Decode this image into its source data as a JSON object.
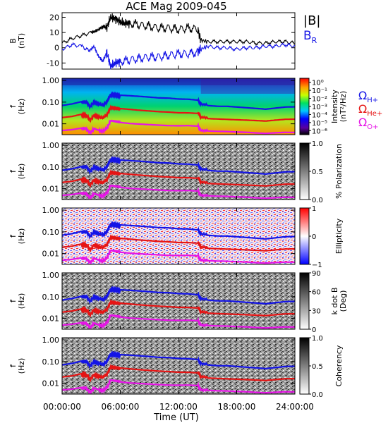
{
  "title": "ACE Mag 2009-045",
  "xlabel": "Time (UT)",
  "xticks": [
    "00:00:00",
    "06:00:00",
    "12:00:00",
    "18:00:00",
    "24:00:00"
  ],
  "freq_ticks": [
    "1.00",
    "0.10",
    "0.01"
  ],
  "freq_ylabel": [
    "f",
    "(Hz)"
  ],
  "legend": {
    "B_total": "|B|",
    "B_R": "B",
    "B_R_sub": "R",
    "omega": "Ω",
    "gyro": [
      {
        "sub": "H+",
        "color": "#1414e6"
      },
      {
        "sub": "He+",
        "color": "#e61414"
      },
      {
        "sub": "O+",
        "color": "#e614e6"
      }
    ]
  },
  "colors": {
    "B_total": "#000000",
    "B_R": "#1414e6",
    "H": "#1414e6",
    "He": "#e61414",
    "O": "#e614e6"
  },
  "chart_data": [
    {
      "type": "line",
      "panel": "B",
      "ylabel": [
        "B",
        "(nT)"
      ],
      "yticks": [
        "20",
        "10",
        "0",
        "-10"
      ],
      "ylim": [
        -14,
        23
      ],
      "x_unit": "hours UT",
      "xlim": [
        0,
        24
      ],
      "series": [
        {
          "name": "|B|",
          "x": [
            0,
            1,
            2,
            3,
            3.5,
            4,
            4.3,
            4.6,
            5,
            5.5,
            6,
            6.5,
            7,
            8,
            9,
            10,
            11,
            12,
            13,
            14,
            14.3,
            15,
            16,
            17,
            18,
            19,
            20,
            21,
            22,
            23,
            24
          ],
          "y": [
            3,
            6,
            8,
            10,
            11,
            13,
            14,
            13,
            20,
            19,
            17,
            16,
            16,
            15,
            14,
            13,
            13,
            12,
            13,
            12,
            5,
            4,
            4,
            4,
            4,
            4,
            3,
            3,
            4,
            4,
            3
          ]
        },
        {
          "name": "B_R",
          "x": [
            0,
            1,
            2,
            2.8,
            3.3,
            3.7,
            4.2,
            4.6,
            5,
            5.5,
            6,
            7,
            8,
            9,
            10,
            11,
            12,
            13,
            14,
            14.3,
            15,
            16,
            17,
            18,
            19,
            20,
            21,
            22,
            23,
            24
          ],
          "y": [
            -1,
            2,
            1,
            -2,
            1,
            -5,
            -9,
            -3,
            -12,
            -10,
            -9,
            -8,
            -7,
            -6,
            -6,
            -5,
            -4,
            -4,
            -3,
            -1,
            1,
            0,
            0,
            -1,
            0,
            0,
            1,
            1,
            2,
            1
          ]
        }
      ]
    },
    {
      "type": "heatmap",
      "panel": "Intensity",
      "colorbar_label": [
        "Intensity",
        "(nT²/Hz)"
      ],
      "colorbar_ticks": [
        "10⁰",
        "10⁻¹",
        "10⁻²",
        "10⁻³",
        "10⁻⁴",
        "10⁻⁵",
        "10⁻⁶"
      ],
      "colorbar_range": [
        -6.5,
        0.5
      ]
    },
    {
      "type": "heatmap",
      "panel": "Polarization",
      "colorbar_label": [
        "% Polarization"
      ],
      "colorbar_ticks": [
        "1.0",
        "0.5",
        "0.0"
      ],
      "colorbar_range": [
        0,
        1
      ]
    },
    {
      "type": "heatmap",
      "panel": "Ellipticity",
      "colorbar_label": [
        "Ellipticity"
      ],
      "colorbar_ticks": [
        "1",
        "0",
        "−1"
      ],
      "colorbar_range": [
        -1,
        1
      ]
    },
    {
      "type": "heatmap",
      "panel": "k dot B",
      "colorbar_label": [
        "k dot B",
        "(Deg)"
      ],
      "colorbar_ticks": [
        "90",
        "60",
        "30",
        "0"
      ],
      "colorbar_range": [
        0,
        90
      ]
    },
    {
      "type": "heatmap",
      "panel": "Coherency",
      "colorbar_label": [
        "Coherency"
      ],
      "colorbar_ticks": [
        "1.0",
        "0.5",
        "0.0"
      ],
      "colorbar_range": [
        0,
        1
      ]
    }
  ],
  "gyrofrequency_lines": {
    "x": [
      0,
      1,
      2,
      2.5,
      2.9,
      3.3,
      3.8,
      4.2,
      4.6,
      5,
      5.5,
      6,
      7,
      8,
      9,
      10,
      11,
      12,
      13,
      14,
      14.3,
      15,
      16,
      17,
      18,
      19,
      20,
      21,
      22,
      23,
      24
    ],
    "H+": [
      0.07,
      0.08,
      0.1,
      0.1,
      0.06,
      0.1,
      0.08,
      0.07,
      0.1,
      0.22,
      0.21,
      0.19,
      0.18,
      0.17,
      0.16,
      0.15,
      0.15,
      0.14,
      0.14,
      0.13,
      0.08,
      0.075,
      0.07,
      0.07,
      0.065,
      0.06,
      0.055,
      0.05,
      0.055,
      0.06,
      0.06
    ],
    "He+": [
      0.018,
      0.02,
      0.025,
      0.025,
      0.015,
      0.025,
      0.02,
      0.018,
      0.025,
      0.055,
      0.052,
      0.048,
      0.045,
      0.042,
      0.04,
      0.038,
      0.037,
      0.035,
      0.035,
      0.033,
      0.02,
      0.019,
      0.018,
      0.017,
      0.016,
      0.015,
      0.014,
      0.013,
      0.014,
      0.015,
      0.015
    ],
    "O+": [
      0.0045,
      0.005,
      0.006,
      0.006,
      0.004,
      0.006,
      0.005,
      0.0045,
      0.006,
      0.014,
      0.013,
      0.012,
      0.011,
      0.0105,
      0.01,
      0.0095,
      0.009,
      0.0088,
      0.0088,
      0.0082,
      0.005,
      0.0048,
      0.0045,
      0.0043,
      0.004,
      0.0038,
      0.0035,
      0.0033,
      0.0035,
      0.0037,
      0.0037
    ]
  }
}
